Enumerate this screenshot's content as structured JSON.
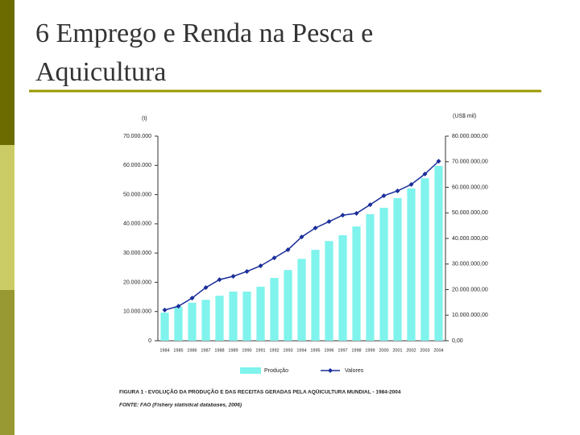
{
  "slide_title": "6 Emprego e Renda na Pesca e Aquicultura",
  "chart_data": {
    "type": "bar-line",
    "y_label": "(t)",
    "y2_label": "(US$ mil)",
    "categories": [
      "1984",
      "1985",
      "1986",
      "1987",
      "1988",
      "1989",
      "1990",
      "1991",
      "1992",
      "1993",
      "1994",
      "1995",
      "1996",
      "1997",
      "1998",
      "1999",
      "2000",
      "2001",
      "2002",
      "2003",
      "2004"
    ],
    "series": [
      {
        "name": "Produção",
        "color": "#7ff3ec",
        "values": [
          9600000.0,
          11600000.0,
          13000000.0,
          14000000.0,
          15400000.0,
          16800000.0,
          16800000.0,
          18500000.0,
          21500000.0,
          24200000.0,
          28000000.0,
          31100000.0,
          34100000.0,
          36100000.0,
          39100000.0,
          43300000.0,
          45500000.0,
          48800000.0,
          52100000.0,
          55600000.0,
          59800000.0
        ]
      },
      {
        "name": "Valores",
        "color": "#1a2e9a",
        "axis": "y2",
        "values": [
          12000000.0,
          13500000.0,
          16700000.0,
          20800000.0,
          23900000.0,
          25200000.0,
          27100000.0,
          29300000.0,
          32400000.0,
          35600000.0,
          40600000.0,
          44100000.0,
          46600000.0,
          49100000.0,
          49800000.0,
          53200000.0,
          56700000.0,
          58600000.0,
          61100000.0,
          65200000.0,
          70200000.0
        ]
      }
    ],
    "ylim": [
      0,
      70000000
    ],
    "yticks": [
      0,
      {
        "value": 10000000,
        "label": "10.000.000"
      },
      {
        "value": 20000000,
        "label": "20.000.000"
      },
      {
        "value": 30000000,
        "label": "30.000.000"
      },
      {
        "value": 40000000,
        "label": "40.000.000"
      },
      {
        "value": 50000000,
        "label": "50.000.000"
      },
      {
        "value": 60000000,
        "label": "60.000.000"
      },
      {
        "value": 70000000,
        "label": "70.000.000"
      }
    ],
    "y2lim": [
      0,
      80000000
    ],
    "y2ticks": [
      {
        "value": 0,
        "label": "0,00"
      },
      {
        "value": 10000000,
        "label": "10.000.000,00"
      },
      {
        "value": 20000000,
        "label": "20.000.000,00"
      },
      {
        "value": 30000000,
        "label": "30.000.000,00"
      },
      {
        "value": 40000000,
        "label": "40.000.000,00"
      },
      {
        "value": 50000000,
        "label": "50.000.000,00"
      },
      {
        "value": 60000000,
        "label": "60.000.000,00"
      },
      {
        "value": 70000000,
        "label": "70.000.000,00"
      },
      {
        "value": 80000000,
        "label": "80.000.000,00"
      }
    ],
    "caption": "FIGURA 1 - EVOLUÇÃO DA PRODUÇÃO E DAS RECEITAS GERADAS PELA AQÜICULTURA MUNDIAL - 1984-2004",
    "source": "FONTE: FAO (Fishery statistical databases, 2006)"
  }
}
